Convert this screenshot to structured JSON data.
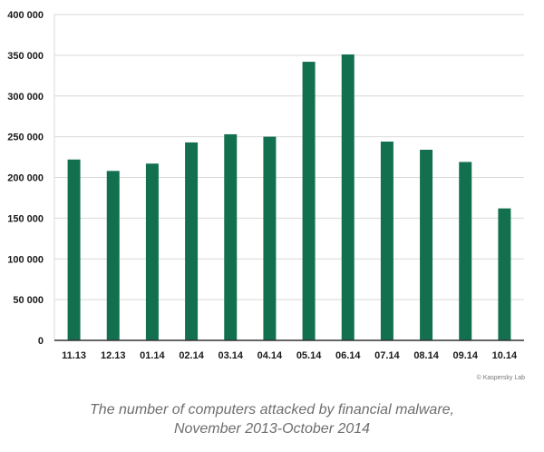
{
  "chart_data": {
    "type": "bar",
    "title": "",
    "xlabel": "",
    "ylabel": "",
    "categories": [
      "11.13",
      "12.13",
      "01.14",
      "02.14",
      "03.14",
      "04.14",
      "05.14",
      "06.14",
      "07.14",
      "08.14",
      "09.14",
      "10.14"
    ],
    "values": [
      222000,
      208000,
      217000,
      243000,
      253000,
      250000,
      342000,
      351000,
      244000,
      234000,
      219000,
      162000
    ],
    "ylim": [
      0,
      400000
    ],
    "yticks": [
      0,
      50000,
      100000,
      150000,
      200000,
      250000,
      300000,
      350000,
      400000
    ],
    "ytick_labels": [
      "0",
      "50 000",
      "100 000",
      "150 000",
      "200 000",
      "250 000",
      "300 000",
      "350 000",
      "400 000"
    ],
    "grid": true,
    "bar_color": "#13704f",
    "grid_color": "#d9d9d9"
  },
  "copyright": "© Kaspersky Lab",
  "caption": {
    "line1": "The number of computers attacked by financial malware,",
    "line2": "November 2013-October 2014"
  }
}
